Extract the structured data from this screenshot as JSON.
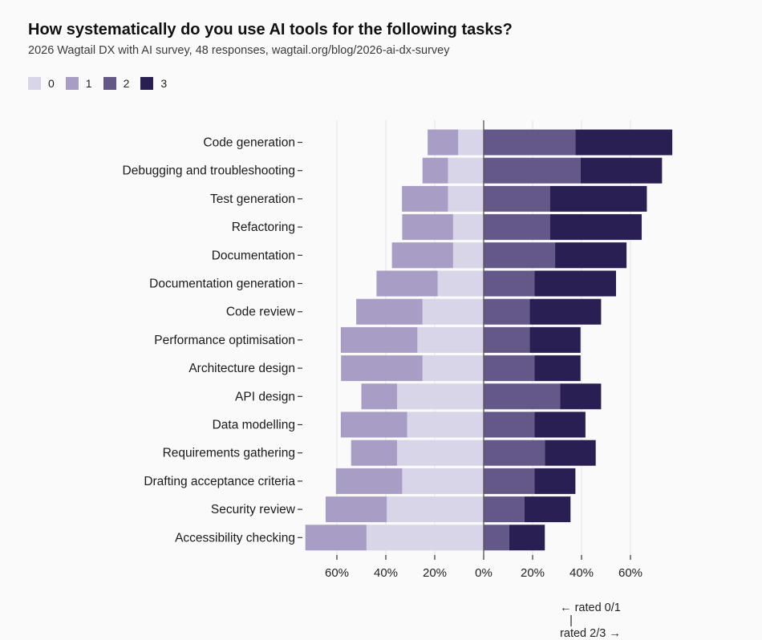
{
  "title": "How systematically do you use AI tools for the following tasks?",
  "subtitle": "2026 Wagtail DX with AI survey, 48 responses, wagtail.org/blog/2026-ai-dx-survey",
  "legend": [
    {
      "label": "0",
      "color": "#d9d5e8"
    },
    {
      "label": "1",
      "color": "#a89ec5"
    },
    {
      "label": "2",
      "color": "#645889"
    },
    {
      "label": "3",
      "color": "#2a1f52"
    }
  ],
  "caption": {
    "left": "← rated 0/1",
    "sep": "|",
    "right": "rated 2/3 →"
  },
  "chart_data": {
    "type": "bar",
    "orientation": "horizontal-diverging",
    "unit": "%",
    "categories": [
      "Code generation",
      "Debugging and troubleshooting",
      "Test generation",
      "Refactoring",
      "Documentation",
      "Documentation generation",
      "Code review",
      "Performance optimisation",
      "Architecture design",
      "API design",
      "Data modelling",
      "Requirements gathering",
      "Drafting acceptance criteria",
      "Security review",
      "Accessibility checking"
    ],
    "series": [
      {
        "name": "0",
        "side": "left",
        "color": "#d9d5e8",
        "values": [
          10.4,
          14.6,
          14.6,
          12.5,
          12.5,
          18.8,
          25.0,
          27.1,
          25.0,
          35.4,
          31.3,
          35.4,
          33.3,
          39.6,
          47.9
        ]
      },
      {
        "name": "1",
        "side": "left",
        "color": "#a89ec5",
        "values": [
          12.5,
          10.4,
          18.8,
          20.8,
          25.0,
          25.0,
          27.1,
          31.3,
          33.3,
          14.6,
          27.1,
          18.8,
          27.1,
          25.0,
          25.0
        ]
      },
      {
        "name": "2",
        "side": "right",
        "color": "#645889",
        "values": [
          37.5,
          39.6,
          27.1,
          27.1,
          29.2,
          20.8,
          18.8,
          18.8,
          20.8,
          31.3,
          20.8,
          25.0,
          20.8,
          16.7,
          10.4
        ]
      },
      {
        "name": "3",
        "side": "right",
        "color": "#2a1f52",
        "values": [
          39.6,
          33.3,
          39.6,
          37.5,
          29.2,
          33.3,
          29.2,
          20.8,
          18.8,
          16.7,
          20.8,
          20.8,
          16.7,
          18.8,
          14.6
        ]
      }
    ],
    "xticks": [
      "60%",
      "40%",
      "20%",
      "0%",
      "20%",
      "40%",
      "60%"
    ],
    "xtick_values": [
      -60,
      -40,
      -20,
      0,
      20,
      40,
      60
    ],
    "xlim": [
      -74,
      77
    ],
    "grid": true
  }
}
